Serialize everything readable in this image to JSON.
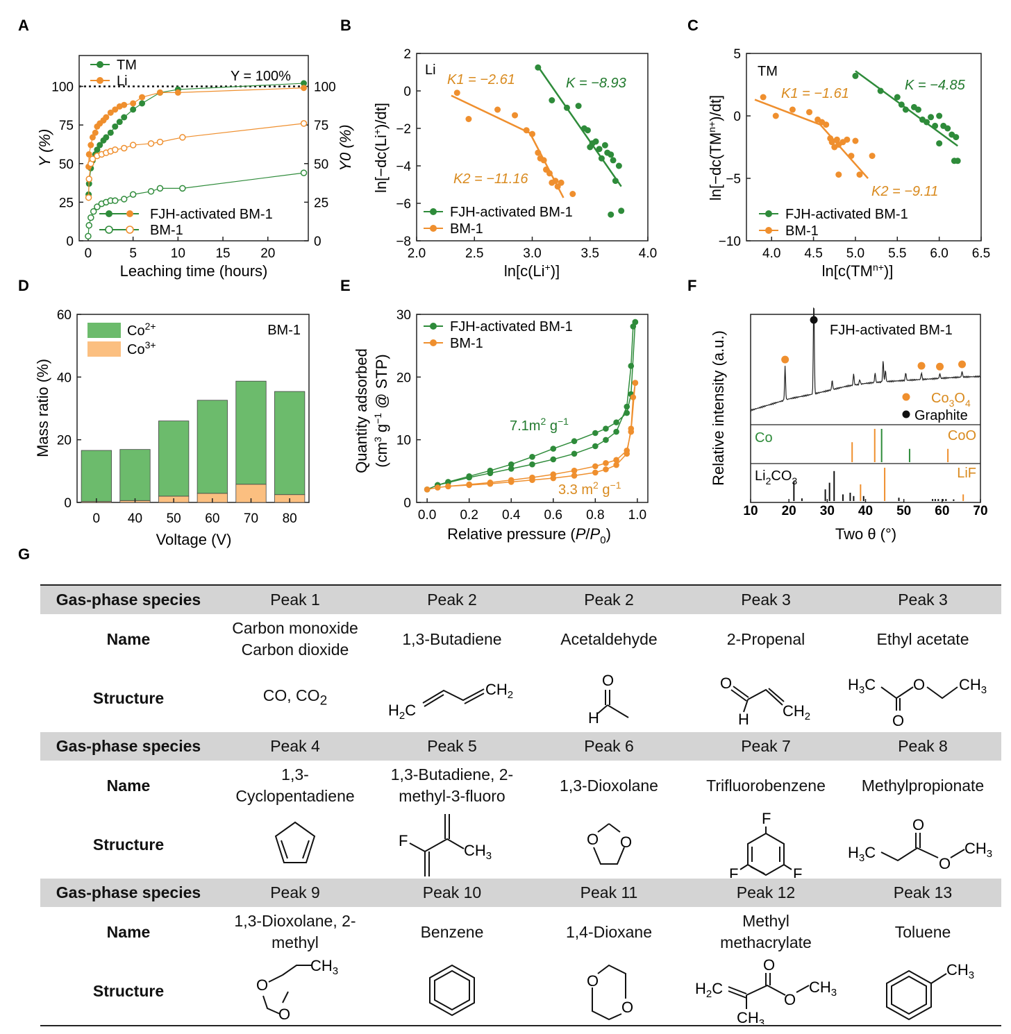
{
  "colors": {
    "green": "#2e8b3a",
    "orange": "#ef8f2e",
    "green_bar": "#6cbb6c",
    "orange_bar": "#fbbf80",
    "label_orange": "#d98a1e",
    "label_green": "#227a2e",
    "table_header": "#d4d4d4"
  },
  "panels": {
    "A": "A",
    "B": "B",
    "C": "C",
    "D": "D",
    "E": "E",
    "F": "F",
    "G": "G"
  },
  "chart_data": [
    {
      "id": "A",
      "type": "scatter",
      "xlabel": "Leaching time (hours)",
      "ylabel": "Y (%)",
      "ylabel_right": "Y0 (%)",
      "xlim": [
        -1,
        24.5
      ],
      "ylim": [
        0,
        120
      ],
      "xticks": [
        0,
        5,
        10,
        15,
        20
      ],
      "yticks": [
        0,
        25,
        50,
        75,
        100
      ],
      "reference_line": {
        "y": 100,
        "label": "Y = 100%"
      },
      "legend_top": [
        "TM",
        "Li"
      ],
      "legend_bottom": [
        "FJH-activated BM-1",
        "BM-1"
      ],
      "series": [
        {
          "name": "TM, FJH-activated BM-1",
          "marker": "filled",
          "color": "green",
          "x": [
            0.05,
            0.1,
            0.3,
            0.5,
            0.8,
            1,
            1.3,
            1.7,
            2,
            2.5,
            3,
            3.5,
            4,
            5,
            6,
            8,
            10,
            24
          ],
          "y": [
            30,
            37,
            47,
            52,
            56,
            59,
            62,
            65,
            67,
            70,
            74,
            77,
            80,
            85,
            89,
            96,
            98,
            102
          ]
        },
        {
          "name": "Li, FJH-activated BM-1",
          "marker": "filled",
          "color": "orange",
          "x": [
            0.05,
            0.1,
            0.3,
            0.5,
            0.8,
            1,
            1.3,
            1.7,
            2,
            2.5,
            3,
            3.5,
            4,
            5,
            6,
            8,
            10,
            24
          ],
          "y": [
            48,
            56,
            62,
            67,
            70,
            74,
            76,
            78,
            80,
            83,
            85,
            87,
            88,
            89,
            93,
            96,
            96,
            99
          ]
        },
        {
          "name": "Li, BM-1",
          "marker": "open",
          "color": "orange",
          "x": [
            0.05,
            0.1,
            0.3,
            0.5,
            1,
            1.5,
            2,
            2.5,
            3,
            4,
            5,
            7,
            8,
            10.5,
            24
          ],
          "y": [
            28,
            40,
            50,
            53,
            55,
            56,
            57,
            58,
            59,
            60,
            62,
            63,
            64,
            67,
            76
          ]
        },
        {
          "name": "TM, BM-1",
          "marker": "open",
          "color": "green",
          "x": [
            0,
            0.1,
            0.3,
            0.6,
            1,
            1.5,
            2,
            2.5,
            3,
            4,
            5,
            7,
            8,
            10.5,
            24
          ],
          "y": [
            3,
            10,
            15,
            19,
            22,
            24,
            25,
            26,
            26,
            27,
            30,
            32,
            34,
            34,
            44
          ]
        }
      ]
    },
    {
      "id": "B",
      "type": "scatter",
      "xlabel": "ln[c(Li+)]",
      "ylabel": "ln[−dc(Li+)/dt]",
      "xlim": [
        2.0,
        4.0
      ],
      "ylim": [
        -8,
        2
      ],
      "xticks": [
        "2.0",
        "2.5",
        "3.0",
        "3.5",
        "4.0"
      ],
      "yticks": [
        -8,
        -6,
        -4,
        -2,
        0,
        2
      ],
      "inner_label": "Li",
      "legend": [
        "FJH-activated BM-1",
        "BM-1"
      ],
      "annotations": {
        "K1": "K1 = −2.61",
        "K2": "K2 = −11.16",
        "K": "K = −8.93"
      },
      "series": [
        {
          "name": "FJH-activated BM-1",
          "color": "green",
          "x": [
            3.05,
            3.17,
            3.3,
            3.4,
            3.45,
            3.48,
            3.5,
            3.52,
            3.55,
            3.58,
            3.6,
            3.63,
            3.65,
            3.68,
            3.7,
            3.72,
            3.75,
            3.68,
            3.77
          ],
          "y": [
            1.25,
            -0.5,
            -0.9,
            -0.8,
            -2.0,
            -2.1,
            -3.0,
            -2.8,
            -2.7,
            -3.1,
            -3.6,
            -2.9,
            -3.3,
            -3.4,
            -3.7,
            -4.8,
            -4.0,
            -6.6,
            -6.4
          ]
        },
        {
          "name": "BM-1",
          "color": "orange",
          "x": [
            2.35,
            2.45,
            2.7,
            2.85,
            2.95,
            3.0,
            3.05,
            3.07,
            3.1,
            3.12,
            3.15,
            3.17,
            3.2,
            3.22,
            3.25,
            3.35
          ],
          "y": [
            -0.1,
            -1.5,
            -1.0,
            -1.3,
            -2.1,
            -2.3,
            -3.3,
            -3.6,
            -3.7,
            -4.2,
            -4.4,
            -4.9,
            -4.8,
            -5.1,
            -4.9,
            -5.5
          ]
        }
      ],
      "fits": [
        {
          "color": "orange",
          "x": [
            2.3,
            2.98
          ],
          "y": [
            -0.25,
            -2.25
          ]
        },
        {
          "color": "orange",
          "x": [
            2.98,
            3.27
          ],
          "y": [
            -2.25,
            -5.7
          ]
        },
        {
          "color": "green",
          "x": [
            3.05,
            3.77
          ],
          "y": [
            1.3,
            -5.1
          ]
        }
      ]
    },
    {
      "id": "C",
      "type": "scatter",
      "xlabel": "ln[c(TMn+)]",
      "ylabel": "ln[−dc(TMn+)/dt]",
      "xlim": [
        3.7,
        6.5
      ],
      "ylim": [
        -10,
        5
      ],
      "xticks": [
        "4.0",
        "4.5",
        "5.0",
        "5.5",
        "6.0",
        "6.5"
      ],
      "yticks": [
        -10,
        -5,
        0,
        5
      ],
      "inner_label": "TM",
      "legend": [
        "FJH-activated BM-1",
        "BM-1"
      ],
      "annotations": {
        "K1": "K1 = −1.61",
        "K2": "K2 = −9.11",
        "K": "K = −4.85"
      },
      "series": [
        {
          "name": "FJH-activated BM-1",
          "color": "green",
          "x": [
            5.0,
            5.3,
            5.5,
            5.55,
            5.6,
            5.7,
            5.75,
            5.8,
            5.85,
            5.9,
            5.95,
            6.0,
            6.05,
            6.1,
            6.15,
            6.2,
            6.0,
            6.18,
            6.22
          ],
          "y": [
            3.2,
            2.0,
            1.5,
            0.9,
            0.5,
            0.7,
            0.5,
            -0.3,
            -0.5,
            -0.1,
            -0.8,
            0.0,
            -0.8,
            -1.0,
            -1.5,
            -1.7,
            -2.2,
            -3.6,
            -3.6
          ]
        },
        {
          "name": "BM-1",
          "color": "orange",
          "x": [
            3.9,
            4.05,
            4.25,
            4.45,
            4.55,
            4.6,
            4.65,
            4.7,
            4.72,
            4.75,
            4.78,
            4.8,
            4.85,
            4.9,
            4.95,
            5.0,
            5.2,
            4.8,
            5.05
          ],
          "y": [
            1.5,
            0.0,
            0.5,
            0.3,
            -0.3,
            -0.5,
            -0.7,
            -1.8,
            -2.1,
            -2.5,
            -1.9,
            -2.3,
            -2.1,
            -1.9,
            -3.2,
            -2.0,
            -3.2,
            -4.7,
            -4.7
          ]
        }
      ],
      "fits": [
        {
          "color": "orange",
          "x": [
            3.8,
            4.58
          ],
          "y": [
            1.3,
            -0.7
          ]
        },
        {
          "color": "orange",
          "x": [
            4.58,
            5.15
          ],
          "y": [
            -0.7,
            -5.0
          ]
        },
        {
          "color": "green",
          "x": [
            5.0,
            6.22
          ],
          "y": [
            3.6,
            -2.4
          ]
        }
      ]
    },
    {
      "id": "D",
      "type": "bar",
      "xlabel": "Voltage (V)",
      "ylabel": "Mass ratio (%)",
      "ylim": [
        0,
        60
      ],
      "yticks": [
        0,
        20,
        40,
        60
      ],
      "categories": [
        "0",
        "40",
        "50",
        "60",
        "70",
        "80"
      ],
      "inner_label": "BM-1",
      "series": [
        {
          "name": "Co2+",
          "values": [
            16.3,
            16.3,
            24.0,
            29.7,
            32.9,
            32.9
          ]
        },
        {
          "name": "Co3+",
          "values": [
            0.3,
            0.6,
            2.0,
            2.9,
            5.8,
            2.5
          ]
        }
      ]
    },
    {
      "id": "E",
      "type": "line",
      "xlabel": "Relative pressure (P/P0)",
      "ylabel": "Quantity adsorbed (cm3 g−1 @ STP)",
      "xlim": [
        -0.05,
        1.05
      ],
      "ylim": [
        0,
        30
      ],
      "xticks": [
        "0.0",
        "0.2",
        "0.4",
        "0.6",
        "0.8",
        "1.0"
      ],
      "yticks": [
        0,
        10,
        20,
        30
      ],
      "legend": [
        "FJH-activated BM-1",
        "BM-1"
      ],
      "annotations": {
        "green": "7.1m2 g−1",
        "orange": "3.3 m2 g−1"
      },
      "series": [
        {
          "name": "FJH-activated BM-1 adsorption",
          "color": "green",
          "x": [
            0.0,
            0.05,
            0.1,
            0.2,
            0.3,
            0.4,
            0.5,
            0.6,
            0.7,
            0.8,
            0.85,
            0.9,
            0.95,
            0.97,
            0.98,
            0.99
          ],
          "y": [
            0.3,
            1.0,
            1.4,
            2.2,
            2.9,
            3.6,
            4.3,
            5.1,
            6.0,
            7.2,
            8.2,
            9.5,
            13.5,
            20,
            26.3,
            27
          ]
        },
        {
          "name": "FJH-activated BM-1 desorption",
          "color": "green",
          "x": [
            0.99,
            0.97,
            0.95,
            0.9,
            0.85,
            0.8,
            0.7,
            0.6,
            0.5,
            0.4,
            0.3,
            0.2,
            0.1,
            0.05
          ],
          "y": [
            27,
            15.5,
            12.5,
            11.0,
            10.0,
            9.3,
            8.0,
            6.8,
            5.5,
            4.3,
            3.3,
            2.4,
            1.5,
            1.0
          ]
        },
        {
          "name": "BM-1 adsorption",
          "color": "orange",
          "x": [
            0.0,
            0.05,
            0.1,
            0.2,
            0.3,
            0.4,
            0.5,
            0.6,
            0.7,
            0.8,
            0.85,
            0.9,
            0.95,
            0.97,
            0.98,
            0.99
          ],
          "y": [
            0.3,
            0.6,
            0.8,
            1.0,
            1.2,
            1.5,
            1.8,
            2.1,
            2.5,
            3.0,
            3.5,
            4.2,
            6.0,
            10,
            15,
            17.3
          ]
        },
        {
          "name": "BM-1 desorption",
          "color": "orange",
          "x": [
            0.99,
            0.97,
            0.95,
            0.9,
            0.85,
            0.8,
            0.7,
            0.6,
            0.5,
            0.4,
            0.3,
            0.2,
            0.1
          ],
          "y": [
            17.3,
            9.5,
            6.5,
            5.0,
            4.5,
            4.0,
            3.3,
            2.7,
            2.2,
            1.8,
            1.4,
            1.1,
            0.8
          ]
        }
      ]
    },
    {
      "id": "F",
      "type": "line",
      "xlabel": "Two θ (°)",
      "ylabel": "Relative intensity (a.u.)",
      "xlim": [
        10,
        70
      ],
      "xticks": [
        10,
        20,
        30,
        40,
        50,
        60,
        70
      ],
      "trace_label": "FJH-activated BM-1",
      "legend": [
        "Co3O4",
        "Graphite"
      ],
      "pattern": {
        "baseline_x": [
          10,
          20,
          26,
          30,
          35,
          40,
          45,
          50,
          55,
          60,
          65,
          70
        ],
        "baseline_y": [
          0.08,
          0.28,
          0.36,
          0.42,
          0.5,
          0.55,
          0.58,
          0.6,
          0.62,
          0.64,
          0.66,
          0.67
        ],
        "peaks": [
          {
            "x": 19.0,
            "h": 0.35
          },
          {
            "x": 26.5,
            "h": 1.0
          },
          {
            "x": 31.3,
            "h": 0.1
          },
          {
            "x": 36.9,
            "h": 0.12
          },
          {
            "x": 38.5,
            "h": 0.05
          },
          {
            "x": 42.5,
            "h": 0.1
          },
          {
            "x": 44.6,
            "h": 0.22
          },
          {
            "x": 45.2,
            "h": 0.12
          },
          {
            "x": 50.5,
            "h": 0.08
          },
          {
            "x": 54.6,
            "h": 0.07
          },
          {
            "x": 59.4,
            "h": 0.05
          },
          {
            "x": 65.2,
            "h": 0.06
          }
        ]
      },
      "markers": [
        {
          "x": 19.0,
          "kind": "Co3O4"
        },
        {
          "x": 26.5,
          "kind": "Graphite"
        },
        {
          "x": 54.6,
          "kind": "Co3O4"
        },
        {
          "x": 59.4,
          "kind": "Co3O4"
        },
        {
          "x": 65.2,
          "kind": "Co3O4"
        }
      ],
      "references": [
        {
          "name": "Co",
          "color": "green",
          "sticks": [
            {
              "x": 44.2,
              "h": 1.0
            },
            {
              "x": 51.5,
              "h": 0.4
            }
          ]
        },
        {
          "name": "CoO",
          "color": "orange",
          "sticks": [
            {
              "x": 36.5,
              "h": 0.6
            },
            {
              "x": 42.4,
              "h": 1.0
            },
            {
              "x": 61.5,
              "h": 0.4
            }
          ]
        },
        {
          "name": "Li2CO3",
          "color": "black",
          "sticks": [
            {
              "x": 21.3,
              "h": 0.6
            },
            {
              "x": 23.4,
              "h": 0.08
            },
            {
              "x": 29.5,
              "h": 0.35
            },
            {
              "x": 30.6,
              "h": 0.55
            },
            {
              "x": 31.8,
              "h": 0.9
            },
            {
              "x": 34.1,
              "h": 0.2
            },
            {
              "x": 36.0,
              "h": 0.25
            },
            {
              "x": 36.9,
              "h": 0.15
            },
            {
              "x": 39.5,
              "h": 0.15
            },
            {
              "x": 48.7,
              "h": 0.1
            },
            {
              "x": 57.5,
              "h": 0.06
            },
            {
              "x": 58.2,
              "h": 0.06
            },
            {
              "x": 59.0,
              "h": 0.06
            },
            {
              "x": 60.2,
              "h": 0.06
            },
            {
              "x": 61.0,
              "h": 0.06
            },
            {
              "x": 63.0,
              "h": 0.05
            }
          ]
        },
        {
          "name": "LiF",
          "color": "orange",
          "sticks": [
            {
              "x": 38.7,
              "h": 0.5
            },
            {
              "x": 45.0,
              "h": 1.0
            },
            {
              "x": 65.5,
              "h": 0.2
            }
          ]
        }
      ]
    }
  ],
  "table": {
    "header_label": "Gas-phase species",
    "name_label": "Name",
    "structure_label": "Structure",
    "blocks": [
      {
        "peaks": [
          "Peak 1",
          "Peak 2",
          "Peak 2",
          "Peak 3",
          "Peak 3"
        ],
        "names": [
          [
            "Carbon monoxide",
            "Carbon dioxide"
          ],
          [
            "1,3-Butadiene"
          ],
          [
            "Acetaldehyde"
          ],
          [
            "2-Propenal"
          ],
          [
            "Ethyl acetate"
          ]
        ]
      },
      {
        "peaks": [
          "Peak 4",
          "Peak 5",
          "Peak 6",
          "Peak 7",
          "Peak 8"
        ],
        "names": [
          [
            "1,3-",
            "Cyclopentadiene"
          ],
          [
            "1,3-Butadiene, 2-",
            "methyl-3-fluoro"
          ],
          [
            "1,3-Dioxolane"
          ],
          [
            "Trifluorobenzene"
          ],
          [
            "Methylpropionate"
          ]
        ]
      },
      {
        "peaks": [
          "Peak 9",
          "Peak 10",
          "Peak 11",
          "Peak 12",
          "Peak 13"
        ],
        "names": [
          [
            "1,3-Dioxolane, 2-",
            "methyl"
          ],
          [
            "Benzene"
          ],
          [
            "1,4-Dioxane"
          ],
          [
            "Methyl",
            "methacrylate"
          ],
          [
            "Toluene"
          ]
        ]
      }
    ],
    "formula_co": "CO, CO2",
    "atoms": {
      "O": "O",
      "H": "H",
      "F": "F",
      "CH2": "CH2",
      "CH3": "CH3",
      "H2C": "H2C",
      "H3C": "H3C"
    }
  }
}
